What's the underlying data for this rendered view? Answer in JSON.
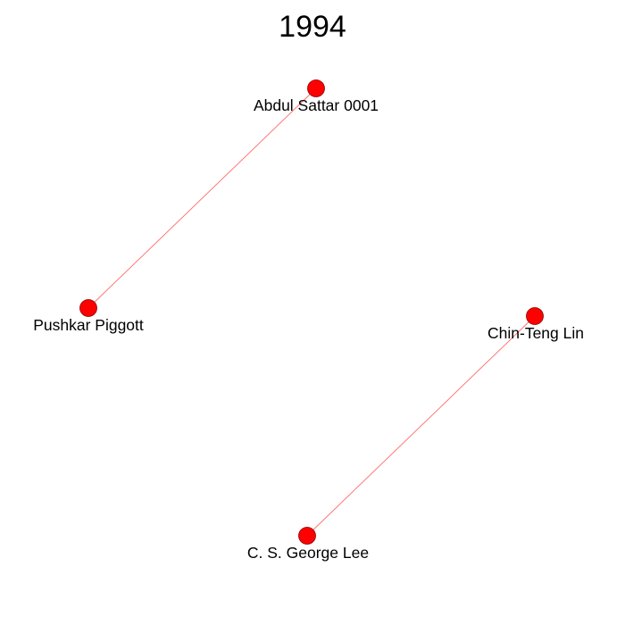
{
  "title": "1994",
  "colors": {
    "node_fill": "#ff0000",
    "node_stroke": "#8b0000",
    "edge": "#ff6b6b",
    "text": "#000000",
    "background": "#ffffff"
  },
  "nodes": [
    {
      "id": "abdul",
      "label": "Abdul Sattar 0001"
    },
    {
      "id": "pushkar",
      "label": "Pushkar Piggott"
    },
    {
      "id": "chinteng",
      "label": "Chin-Teng Lin"
    },
    {
      "id": "george",
      "label": "C. S. George Lee"
    }
  ],
  "edges": [
    {
      "source": "abdul",
      "target": "pushkar"
    },
    {
      "source": "chinteng",
      "target": "george"
    }
  ]
}
